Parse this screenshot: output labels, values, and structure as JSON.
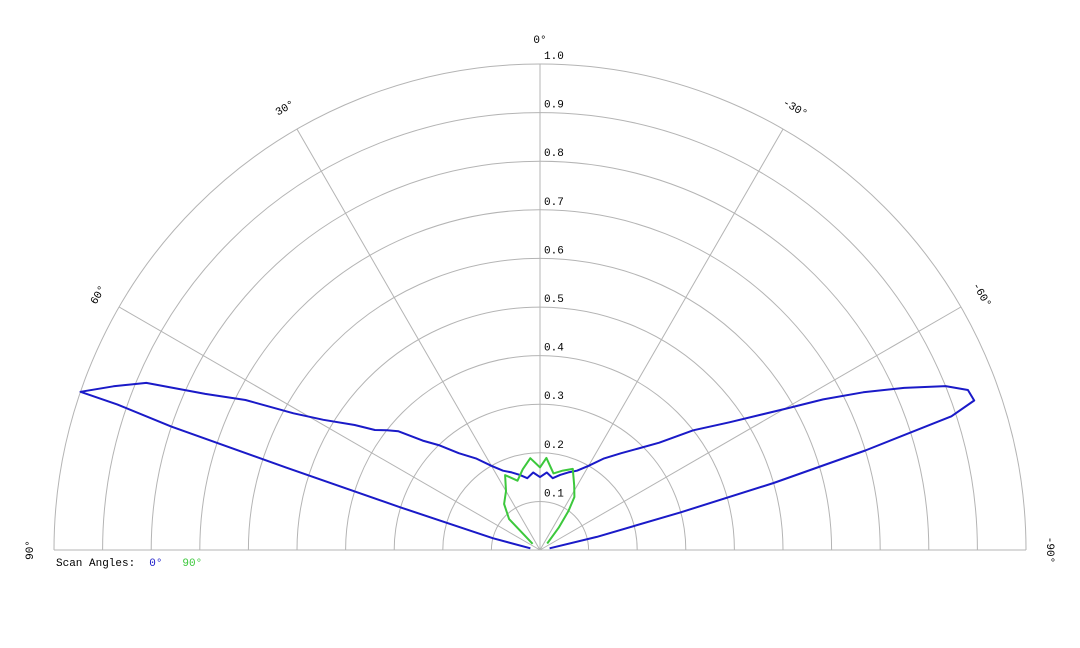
{
  "chart_data": {
    "type": "polar",
    "legend_title": "Scan Angles:",
    "rlim": [
      0,
      1
    ],
    "rticks": [
      0.1,
      0.2,
      0.3,
      0.4,
      0.5,
      0.6,
      0.7,
      0.8,
      0.9,
      {
        "value": 1,
        "label": "1.0"
      }
    ],
    "xlim": [
      90,
      -90
    ],
    "xticks": [
      {
        "value": 90,
        "label": "90°"
      },
      {
        "value": 60,
        "label": "60°"
      },
      {
        "value": 30,
        "label": "30°"
      },
      {
        "value": 0,
        "label": "0°"
      },
      {
        "value": -30,
        "label": "-30°"
      },
      {
        "value": -60,
        "label": "-60°"
      },
      {
        "value": -90,
        "label": "-90°"
      }
    ],
    "grid": true,
    "series": [
      {
        "name": "0°",
        "color": "#1a1ac8",
        "x": [
          80,
          76,
          73,
          72,
          71.5,
          71,
          71,
          69,
          67,
          65,
          63,
          61,
          59,
          56,
          54,
          52,
          50,
          47,
          44,
          40,
          35,
          30,
          25,
          20,
          15,
          10,
          5,
          0,
          -5,
          -10,
          -15,
          -20,
          -25,
          -30,
          -35,
          -40,
          -44,
          -48,
          -52,
          -56,
          -60,
          -62,
          -64,
          -66,
          -68,
          -69.5,
          -71,
          -72,
          -73,
          -74,
          -75,
          -77,
          -80
        ],
        "values": [
          0.02,
          0.1,
          0.3,
          0.55,
          0.8,
          0.92,
          1.0,
          0.94,
          0.88,
          0.76,
          0.68,
          0.58,
          0.52,
          0.46,
          0.42,
          0.4,
          0.38,
          0.33,
          0.3,
          0.26,
          0.23,
          0.2,
          0.18,
          0.17,
          0.16,
          0.15,
          0.16,
          0.15,
          0.16,
          0.15,
          0.16,
          0.17,
          0.18,
          0.2,
          0.23,
          0.26,
          0.29,
          0.33,
          0.4,
          0.47,
          0.58,
          0.66,
          0.74,
          0.82,
          0.9,
          0.94,
          0.945,
          0.89,
          0.7,
          0.5,
          0.3,
          0.12,
          0.02
        ]
      },
      {
        "name": "90°",
        "color": "#3cc83c",
        "x": [
          50,
          45,
          38,
          30,
          25,
          18,
          12,
          6,
          0,
          -4,
          -10,
          -16,
          -22,
          -28,
          -33,
          -36,
          -40,
          -48
        ],
        "values": [
          0.02,
          0.09,
          0.12,
          0.14,
          0.17,
          0.15,
          0.17,
          0.19,
          0.17,
          0.19,
          0.16,
          0.17,
          0.18,
          0.15,
          0.13,
          0.1,
          0.06,
          0.02
        ]
      }
    ]
  }
}
